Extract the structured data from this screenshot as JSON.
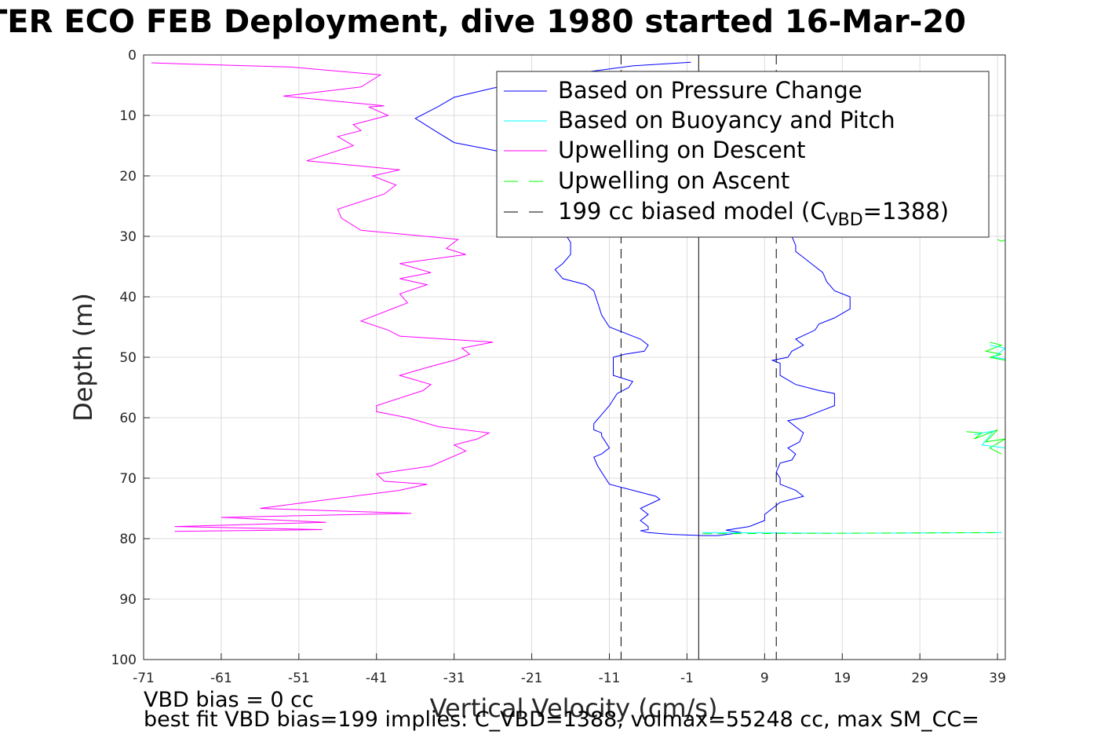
{
  "title": "TER ECO FEB Deployment, dive 1980 started 16-Mar-20",
  "footer": {
    "line1": "VBD bias = 0 cc",
    "line2": "best fit VBD bias=199 implies: C_VBD=1388, volmax=55248 cc, max SM_CC="
  },
  "chart_data": {
    "type": "line",
    "xlabel": "Vertical Velocity (cm/s)",
    "ylabel": "Depth (m)",
    "xlim": [
      -71,
      40
    ],
    "ylim": [
      0,
      100
    ],
    "y_reversed": true,
    "grid": true,
    "x_ticks": [
      -71,
      -61,
      -51,
      -41,
      -31,
      -21,
      -11,
      -1,
      9,
      19,
      29,
      39
    ],
    "y_ticks": [
      0,
      10,
      20,
      30,
      40,
      50,
      60,
      70,
      80,
      90,
      100
    ],
    "legend_position": "top-right",
    "series": [
      {
        "name": "Based on Pressure Change",
        "color": "#0000ff",
        "style": "solid",
        "points": [
          [
            -0.5,
            1.2
          ],
          [
            -8,
            1.8
          ],
          [
            -18,
            3.5
          ],
          [
            -26,
            5.5
          ],
          [
            -31,
            7
          ],
          [
            -33,
            8.5
          ],
          [
            -36,
            10.5
          ],
          [
            -33.5,
            12.5
          ],
          [
            -31,
            14.5
          ],
          [
            -27,
            15.5
          ],
          [
            -23,
            16.5
          ],
          [
            -21,
            17.2
          ],
          [
            -17,
            29
          ],
          [
            -16,
            31
          ],
          [
            -16,
            33
          ],
          [
            -17,
            34.5
          ],
          [
            -18,
            35.5
          ],
          [
            -17,
            37
          ],
          [
            -14,
            38
          ],
          [
            -13,
            39
          ],
          [
            -12.5,
            41
          ],
          [
            -12,
            43
          ],
          [
            -11,
            45
          ],
          [
            -9,
            46
          ],
          [
            -7,
            47
          ],
          [
            -6,
            48
          ],
          [
            -6.5,
            49
          ],
          [
            -9,
            49.5
          ],
          [
            -10.5,
            50
          ],
          [
            -10.5,
            52
          ],
          [
            -10.5,
            53
          ],
          [
            -8,
            54
          ],
          [
            -8.5,
            55
          ],
          [
            -10,
            56
          ],
          [
            -11,
            58
          ],
          [
            -12,
            59.5
          ],
          [
            -13,
            61
          ],
          [
            -13,
            62
          ],
          [
            -12,
            62.5
          ],
          [
            -12,
            63
          ],
          [
            -11.5,
            64
          ],
          [
            -11,
            65
          ],
          [
            -12,
            66
          ],
          [
            -13,
            66.5
          ],
          [
            -12.5,
            68
          ],
          [
            -12,
            69
          ],
          [
            -11.5,
            70
          ],
          [
            -11,
            71
          ],
          [
            -8,
            72
          ],
          [
            -5,
            73
          ],
          [
            -4.5,
            73.5
          ],
          [
            -7,
            75
          ],
          [
            -6,
            76
          ],
          [
            -7,
            77
          ],
          [
            -6,
            78
          ],
          [
            -6,
            78.5
          ],
          [
            -7,
            78.7
          ],
          [
            -6,
            79
          ],
          [
            -3,
            79.3
          ],
          [
            1,
            79.5
          ],
          [
            3,
            79.5
          ],
          [
            6,
            79
          ],
          [
            4,
            78.6
          ],
          [
            7,
            78
          ],
          [
            9,
            77
          ],
          [
            9,
            76
          ],
          [
            10,
            75
          ],
          [
            11,
            74
          ],
          [
            14,
            73
          ],
          [
            13,
            72
          ],
          [
            11,
            71
          ],
          [
            11,
            70
          ],
          [
            10.5,
            69
          ],
          [
            11,
            67.5
          ],
          [
            12.5,
            67
          ],
          [
            13,
            66
          ],
          [
            12,
            65
          ],
          [
            13.5,
            64
          ],
          [
            14,
            62.5
          ],
          [
            13,
            61.5
          ],
          [
            12,
            60.5
          ],
          [
            14,
            60
          ],
          [
            16,
            59
          ],
          [
            18,
            58
          ],
          [
            18,
            56
          ],
          [
            16,
            55.5
          ],
          [
            13,
            54.5
          ],
          [
            11,
            53
          ],
          [
            11,
            51
          ],
          [
            10,
            50.5
          ],
          [
            12,
            50
          ],
          [
            12.5,
            49
          ],
          [
            14,
            48
          ],
          [
            13,
            47
          ],
          [
            15.5,
            45.5
          ],
          [
            16,
            44.5
          ],
          [
            18,
            43.5
          ],
          [
            20,
            42
          ],
          [
            20,
            40
          ],
          [
            18,
            39
          ],
          [
            17,
            37.5
          ],
          [
            16.5,
            36
          ],
          [
            15,
            34.5
          ],
          [
            14,
            33.5
          ],
          [
            13,
            32.5
          ],
          [
            13,
            31.5
          ],
          [
            12.5,
            30
          ]
        ]
      },
      {
        "name": "Based on Buoyancy and Pitch",
        "color": "#00ffff",
        "style": "solid",
        "points": [
          [
            1,
            79
          ],
          [
            20,
            79.1
          ],
          [
            39.5,
            79
          ]
        ]
      },
      {
        "name": "Upwelling on Descent",
        "color": "#ff00ff",
        "style": "solid",
        "points": [
          [
            -70,
            1.3
          ],
          [
            -63,
            1.6
          ],
          [
            -52,
            2
          ],
          [
            -40.5,
            3.3
          ],
          [
            -43,
            5.3
          ],
          [
            -53,
            6.8
          ],
          [
            -40,
            8.4
          ],
          [
            -42,
            8.6
          ],
          [
            -39.5,
            10
          ],
          [
            -44,
            11.5
          ],
          [
            -43,
            12.5
          ],
          [
            -46,
            13.5
          ],
          [
            -44,
            15
          ],
          [
            -50,
            17.5
          ],
          [
            -38,
            19
          ],
          [
            -41.5,
            20
          ],
          [
            -38.5,
            21.5
          ],
          [
            -40,
            23
          ],
          [
            -46,
            25.5
          ],
          [
            -45.5,
            27
          ],
          [
            -43,
            29
          ],
          [
            -30.5,
            30.5
          ],
          [
            -32,
            32
          ],
          [
            -29.5,
            33
          ],
          [
            -38,
            34.5
          ],
          [
            -34,
            36
          ],
          [
            -38,
            37
          ],
          [
            -34.5,
            38
          ],
          [
            -38,
            39.5
          ],
          [
            -37,
            41
          ],
          [
            -43,
            44
          ],
          [
            -39.5,
            45.5
          ],
          [
            -38,
            46.5
          ],
          [
            -26,
            47.5
          ],
          [
            -30,
            48.5
          ],
          [
            -29,
            49.5
          ],
          [
            -31,
            50.5
          ],
          [
            -34,
            51.5
          ],
          [
            -38,
            53
          ],
          [
            -34,
            54.5
          ],
          [
            -35,
            55.5
          ],
          [
            -41,
            58
          ],
          [
            -41,
            59
          ],
          [
            -37,
            60
          ],
          [
            -33,
            61.5
          ],
          [
            -26.5,
            62.5
          ],
          [
            -28,
            63.5
          ],
          [
            -31,
            64.5
          ],
          [
            -29.5,
            65.5
          ],
          [
            -34,
            68
          ],
          [
            -41,
            69.3
          ],
          [
            -40,
            70.5
          ],
          [
            -34.5,
            71
          ],
          [
            -38,
            72
          ],
          [
            -50,
            74
          ],
          [
            -56,
            75
          ],
          [
            -36.5,
            75.8
          ],
          [
            -61,
            76.5
          ],
          [
            -47.5,
            77.3
          ],
          [
            -67,
            78
          ],
          [
            -48,
            78.5
          ],
          [
            -67,
            78.8
          ]
        ]
      },
      {
        "name": "Upwelling on Ascent",
        "color": "#00ff00",
        "style": "dashed",
        "points": [
          [
            1,
            79.2
          ],
          [
            20,
            79.1
          ],
          [
            39.5,
            79
          ]
        ]
      },
      {
        "name": "199 cc biased model (C_VBD=1388)",
        "color": "#000000",
        "style": "dashed",
        "points": [
          [
            -9.5,
            0
          ],
          [
            -9.5,
            100
          ]
        ]
      },
      {
        "name": "",
        "color": "#000000",
        "style": "dashed",
        "points": [
          [
            10.5,
            0
          ],
          [
            10.5,
            100
          ]
        ]
      },
      {
        "name": "",
        "color": "#000000",
        "style": "solid",
        "points": [
          [
            0.5,
            0
          ],
          [
            0.5,
            100
          ]
        ]
      }
    ],
    "ascent_fragments": [
      {
        "color": "#00ff00",
        "points": [
          [
            39,
            30.5
          ],
          [
            39.5,
            30.8
          ],
          [
            40,
            30.6
          ]
        ]
      },
      {
        "color": "#00ff00",
        "points": [
          [
            38,
            47.5
          ],
          [
            39.5,
            48
          ],
          [
            37.5,
            49
          ],
          [
            39.5,
            49.5
          ],
          [
            38,
            50
          ],
          [
            40,
            50.5
          ]
        ]
      },
      {
        "color": "#00ffff",
        "points": [
          [
            38,
            48
          ],
          [
            40,
            48.5
          ],
          [
            38.5,
            50
          ],
          [
            40,
            50.3
          ]
        ]
      },
      {
        "color": "#00ff00",
        "points": [
          [
            35,
            62.3
          ],
          [
            37,
            62.5
          ],
          [
            36,
            63.5
          ],
          [
            39,
            62
          ],
          [
            37.5,
            64
          ],
          [
            40,
            63.5
          ],
          [
            38,
            65
          ],
          [
            39.5,
            66
          ]
        ]
      },
      {
        "color": "#00ffff",
        "points": [
          [
            36,
            62.8
          ],
          [
            38.5,
            62.2
          ],
          [
            37,
            64.5
          ],
          [
            40,
            65
          ]
        ]
      }
    ]
  },
  "legend": {
    "entries": [
      {
        "label": "Based on Pressure Change",
        "color": "#0000ff",
        "style": "solid"
      },
      {
        "label": "Based on Buoyancy and Pitch",
        "color": "#00ffff",
        "style": "solid"
      },
      {
        "label": "Upwelling on Descent",
        "color": "#ff00ff",
        "style": "solid"
      },
      {
        "label": "Upwelling on Ascent",
        "color": "#00ff00",
        "style": "dashed"
      },
      {
        "label": "199 cc biased model (C",
        "sub": "VBD",
        "suffix": "=1388)",
        "color": "#000000",
        "style": "dashed"
      }
    ]
  }
}
